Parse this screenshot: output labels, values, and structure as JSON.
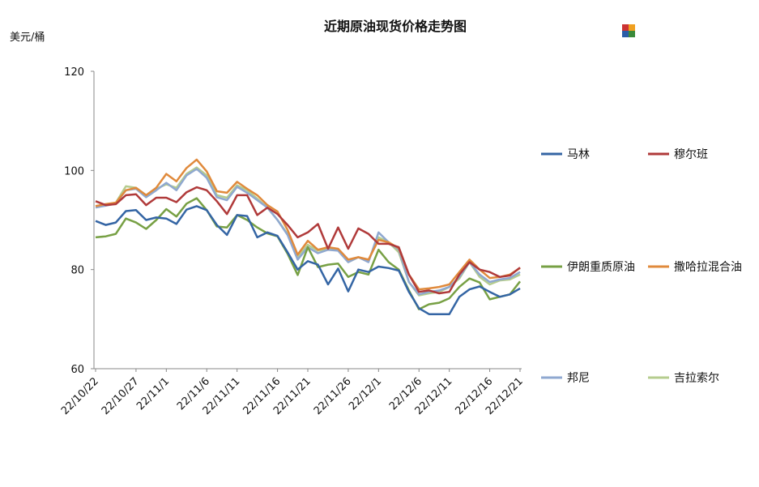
{
  "chart_data": {
    "type": "line",
    "title": "近期原油现货价格走势图",
    "unit_label": "美元/桶",
    "ylim": [
      60,
      120
    ],
    "yticks": [
      60,
      80,
      100,
      120
    ],
    "x_tick_labels": [
      "22/10/22",
      "22/10/27",
      "22/11/1",
      "22/11/6",
      "22/11/11",
      "22/11/16",
      "22/11/21",
      "22/11/26",
      "22/12/1",
      "22/12/6",
      "22/12/11",
      "22/12/16",
      "22/12/21"
    ],
    "x": [
      "10-22",
      "10-25",
      "10-26",
      "10-27",
      "10-28",
      "10-31",
      "11-1",
      "11-2",
      "11-3",
      "11-4",
      "11-7",
      "11-8",
      "11-9",
      "11-10",
      "11-11",
      "11-14",
      "11-15",
      "11-16",
      "11-17",
      "11-18",
      "11-21",
      "11-22",
      "11-23",
      "11-24",
      "11-25",
      "11-28",
      "11-29",
      "11-30",
      "12-1",
      "12-2",
      "12-5",
      "12-6",
      "12-7",
      "12-8",
      "12-9",
      "12-12",
      "12-13",
      "12-14",
      "12-15",
      "12-16",
      "12-19",
      "12-20",
      "12-21"
    ],
    "series": [
      {
        "name": "马林",
        "color": "#3465a4",
        "values": [
          89.8,
          89.0,
          89.5,
          91.8,
          92.0,
          90.0,
          90.5,
          90.3,
          89.2,
          92.1,
          92.8,
          92.0,
          89.0,
          87.0,
          91.0,
          90.8,
          86.5,
          87.5,
          86.8,
          83.5,
          80.0,
          81.7,
          81.0,
          77.0,
          80.2,
          75.6,
          80.0,
          79.5,
          80.6,
          80.3,
          79.8,
          75.5,
          72.2,
          71.0,
          71.0,
          71.0,
          74.5,
          76.0,
          76.6,
          75.5,
          74.5,
          75.0,
          76.2
        ]
      },
      {
        "name": "穆尔班",
        "color": "#b03a3a",
        "values": [
          93.8,
          93.0,
          93.2,
          95.0,
          95.2,
          93.0,
          94.5,
          94.5,
          93.6,
          95.6,
          96.6,
          96.0,
          93.8,
          91.2,
          95.0,
          95.0,
          91.0,
          92.5,
          91.2,
          89.0,
          86.5,
          87.5,
          89.2,
          84.2,
          88.5,
          84.2,
          88.3,
          87.2,
          85.2,
          85.2,
          84.5,
          79.0,
          75.5,
          75.8,
          75.2,
          75.5,
          79.0,
          81.5,
          80.0,
          79.5,
          78.5,
          78.8,
          80.4
        ]
      },
      {
        "name": "伊朗重质原油",
        "color": "#77a044",
        "values": [
          86.5,
          86.7,
          87.2,
          90.3,
          89.5,
          88.2,
          90.0,
          92.2,
          90.7,
          93.3,
          94.4,
          92.0,
          88.7,
          88.5,
          91.0,
          90.0,
          88.5,
          87.3,
          86.7,
          83.2,
          78.9,
          84.5,
          80.5,
          81.0,
          81.2,
          78.5,
          79.5,
          79.0,
          84.0,
          81.5,
          80.0,
          75.8,
          72.0,
          73.0,
          73.3,
          74.2,
          76.5,
          78.2,
          77.4,
          74.0,
          74.5,
          75.0,
          77.6
        ]
      },
      {
        "name": "撒哈拉混合油",
        "color": "#e08a3c",
        "values": [
          92.8,
          93.2,
          93.5,
          96.0,
          96.5,
          95.0,
          96.5,
          99.3,
          97.8,
          100.5,
          102.2,
          99.8,
          95.8,
          95.5,
          97.7,
          96.3,
          95.0,
          93.0,
          91.7,
          88.0,
          83.0,
          85.8,
          84.0,
          84.5,
          84.2,
          82.0,
          82.5,
          82.0,
          86.0,
          85.5,
          84.3,
          79.0,
          76.0,
          76.2,
          76.5,
          77.0,
          79.5,
          82.0,
          80.0,
          78.3,
          78.5,
          79.0,
          80.3
        ]
      },
      {
        "name": "邦尼",
        "color": "#8fa8d0",
        "values": [
          92.5,
          92.9,
          93.3,
          96.0,
          96.3,
          94.6,
          96.0,
          97.5,
          96.0,
          99.0,
          100.3,
          98.5,
          94.6,
          94.0,
          96.7,
          95.5,
          94.0,
          92.5,
          90.0,
          87.0,
          82.0,
          84.5,
          83.3,
          84.0,
          83.8,
          81.5,
          82.5,
          81.5,
          87.5,
          85.5,
          84.0,
          77.5,
          75.0,
          75.5,
          75.8,
          76.5,
          78.5,
          81.5,
          79.0,
          77.5,
          78.0,
          78.3,
          79.5
        ]
      },
      {
        "name": "吉拉索尔",
        "color": "#b5cc8e",
        "values": [
          92.8,
          93.1,
          93.5,
          96.8,
          96.5,
          95.0,
          96.3,
          97.2,
          96.5,
          99.3,
          100.6,
          99.0,
          95.0,
          94.5,
          97.0,
          96.0,
          94.3,
          92.5,
          90.0,
          87.2,
          82.5,
          85.0,
          83.8,
          84.2,
          84.0,
          81.5,
          82.5,
          81.8,
          86.5,
          85.5,
          83.5,
          77.5,
          74.8,
          75.2,
          75.5,
          76.5,
          78.2,
          81.5,
          78.5,
          77.0,
          77.8,
          78.0,
          79.0
        ]
      }
    ],
    "legend_position": "right",
    "grid": false
  }
}
